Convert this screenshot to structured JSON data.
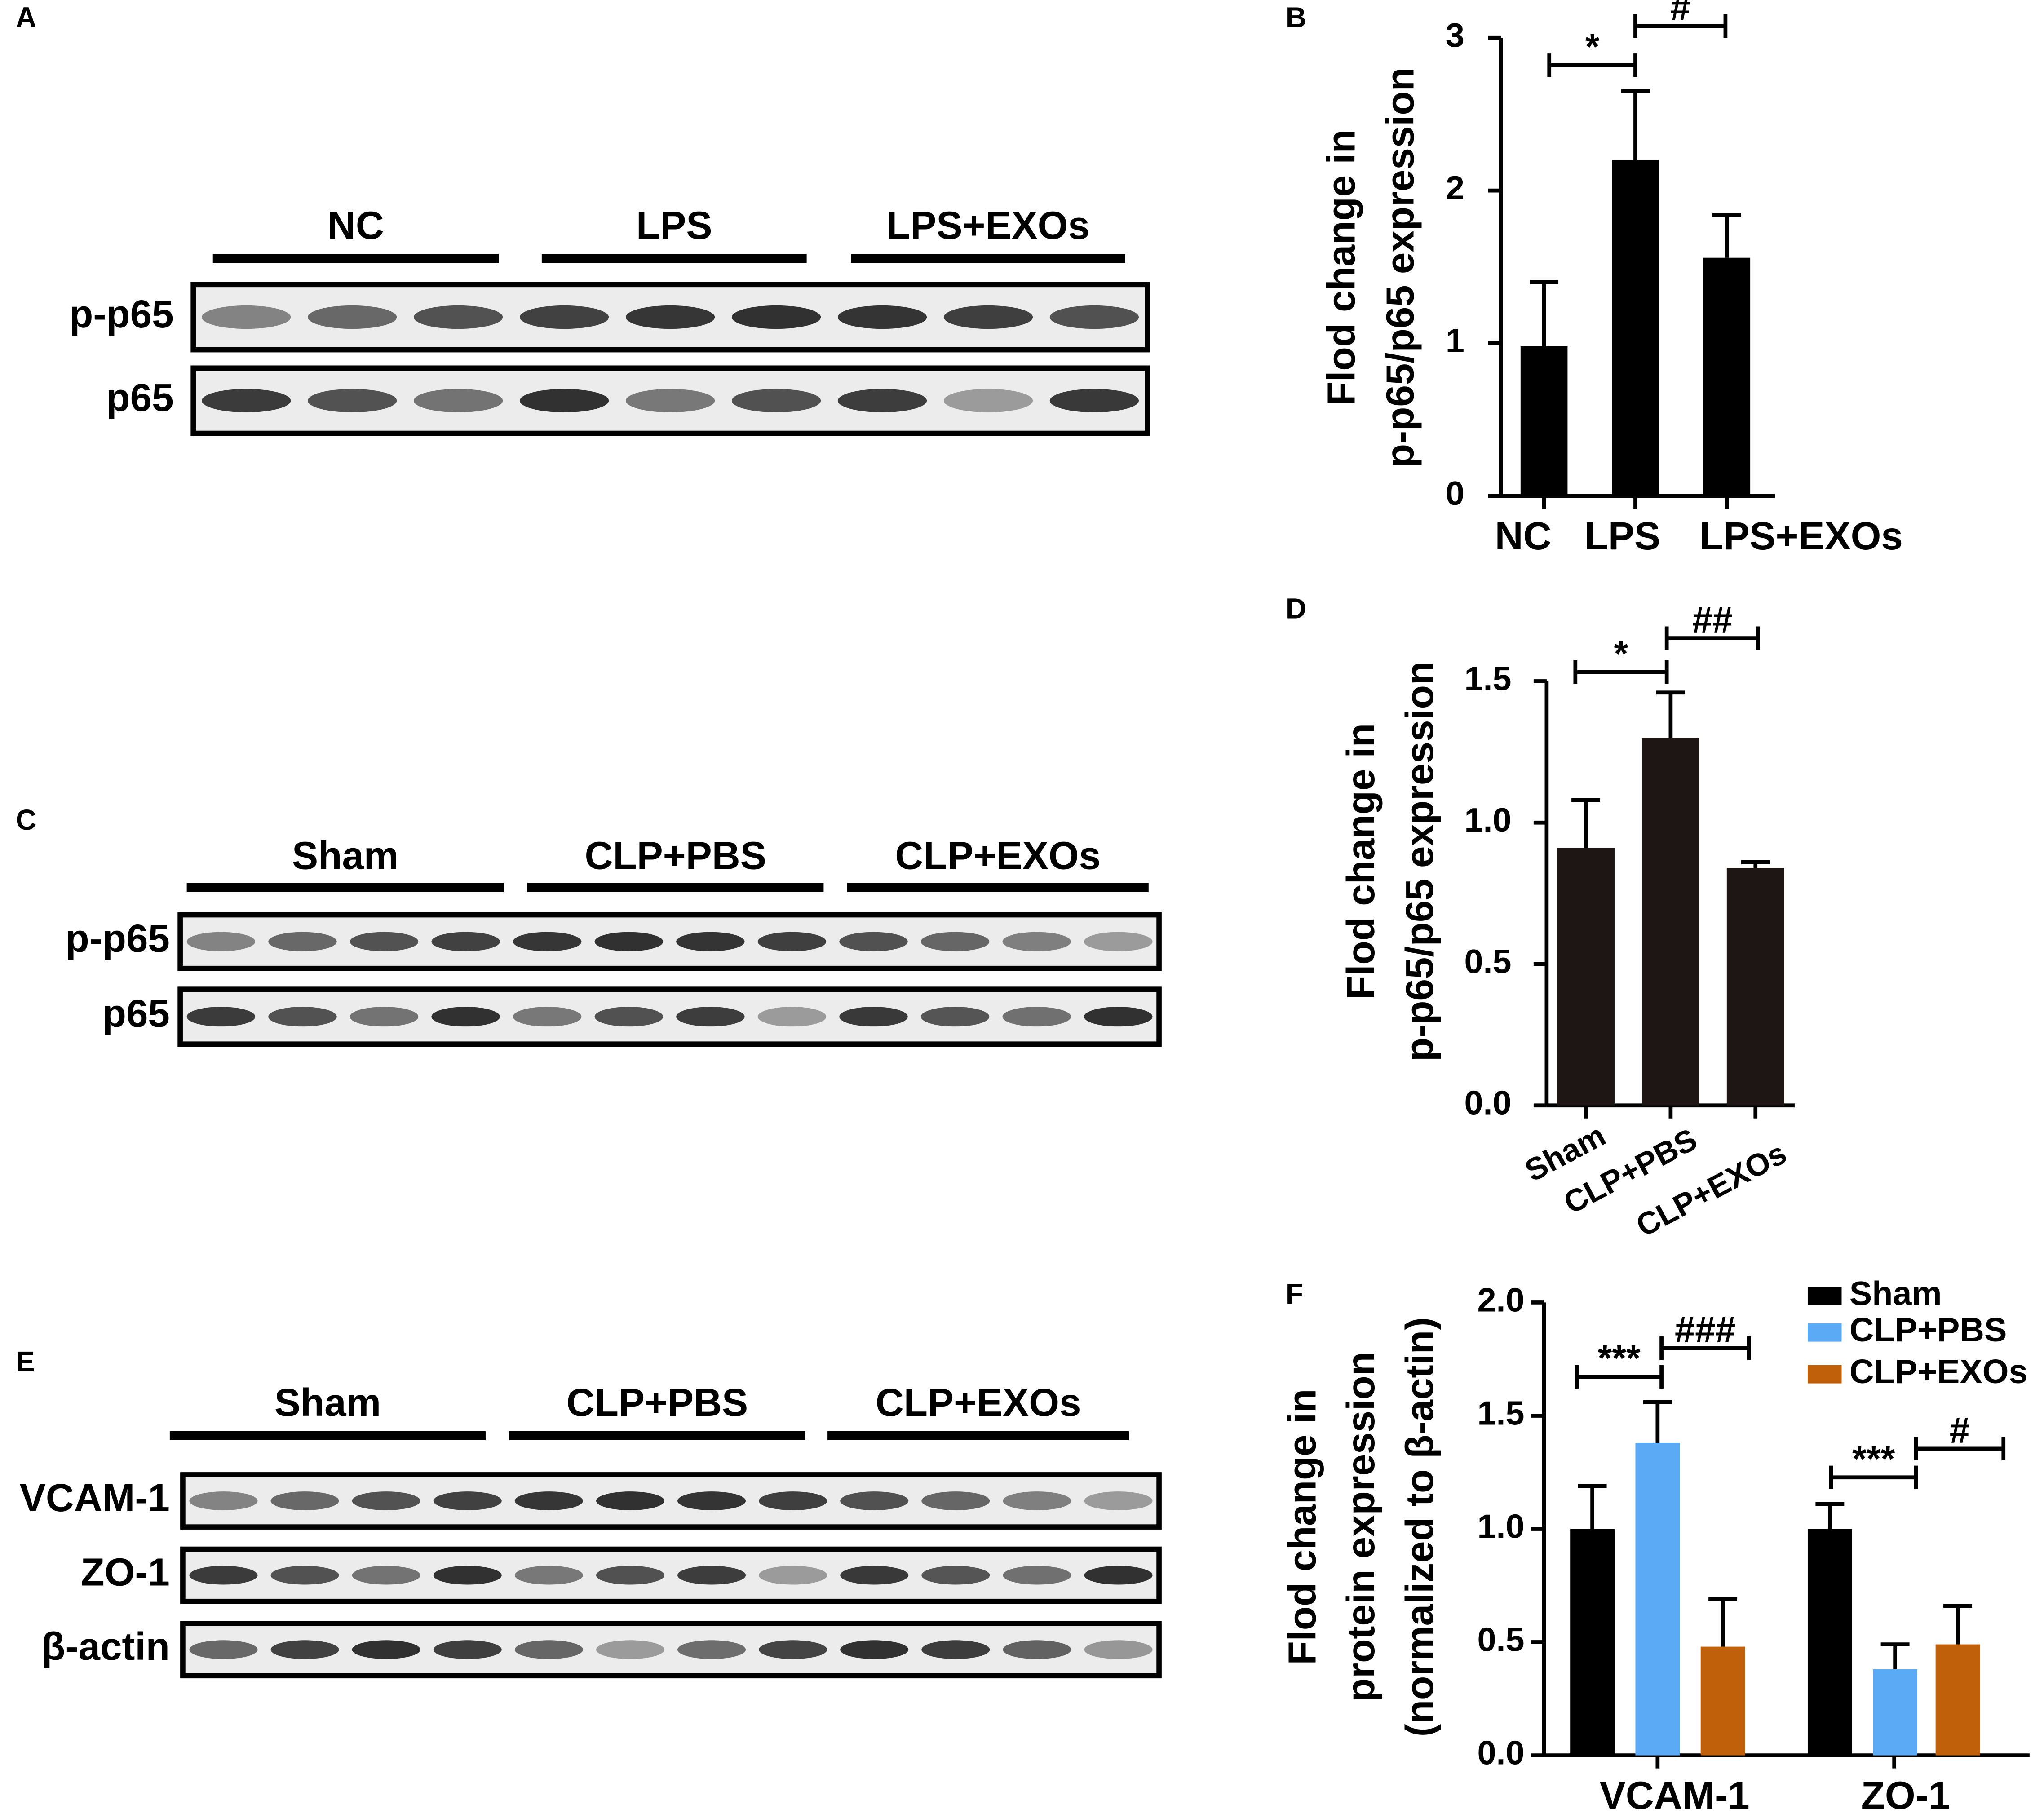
{
  "blots": [
    {
      "label": "A",
      "groups": [
        "NC",
        "LPS",
        "LPS+EXOs"
      ],
      "rows": [
        "p-p65",
        "p65"
      ]
    },
    {
      "label": "C",
      "groups": [
        "Sham",
        "CLP+PBS",
        "CLP+EXOs"
      ],
      "rows": [
        "p-p65",
        "p65"
      ]
    },
    {
      "label": "E",
      "groups": [
        "Sham",
        "CLP+PBS",
        "CLP+EXOs"
      ],
      "rows": [
        "VCAM-1",
        "ZO-1",
        "β-actin"
      ]
    }
  ],
  "chart_data": [
    {
      "type": "bar",
      "label": "B",
      "ylabel": [
        "Flod change in",
        "p-p65/p65 expression"
      ],
      "categories": [
        "NC",
        "LPS",
        "LPS+EXOs"
      ],
      "values": [
        0.98,
        2.2,
        1.56
      ],
      "errors": [
        0.42,
        0.45,
        0.28
      ],
      "color": "#000000",
      "ylim": [
        0,
        3
      ],
      "yticks": [
        0,
        1,
        2,
        3
      ],
      "annotations": [
        "*",
        "#"
      ]
    },
    {
      "type": "bar",
      "label": "D",
      "ylabel": [
        "Flod change in",
        "p-p65/p65 expression"
      ],
      "categories": [
        "Sham",
        "CLP+PBS",
        "CLP+EXOs"
      ],
      "values": [
        0.91,
        1.3,
        0.84
      ],
      "errors": [
        0.17,
        0.16,
        0.02
      ],
      "color": "#1e1614",
      "ylim": [
        0,
        1.5
      ],
      "yticks": [
        {
          "value": 0,
          "label": "0.0"
        },
        {
          "value": 0.5,
          "label": "0.5"
        },
        {
          "value": 1,
          "label": "1.0"
        },
        {
          "value": 1.5,
          "label": "1.5"
        }
      ],
      "annotations": [
        "*",
        "##"
      ]
    },
    {
      "type": "bar",
      "label": "F",
      "ylabel": [
        "Flod change in",
        "protein expression",
        "(normalized to β-actin)"
      ],
      "categories": [
        "VCAM-1",
        "ZO-1"
      ],
      "series": [
        {
          "name": "Sham",
          "color": "#000000",
          "values": [
            1.0,
            1.0
          ],
          "errors": [
            0.19,
            0.11
          ]
        },
        {
          "name": "CLP+PBS",
          "color": "#5aaaf5",
          "values": [
            1.38,
            0.38
          ],
          "errors": [
            0.18,
            0.11
          ]
        },
        {
          "name": "CLP+EXOs",
          "color": "#c0600a",
          "values": [
            0.48,
            0.49
          ],
          "errors": [
            0.21,
            0.17
          ]
        }
      ],
      "ylim": [
        0,
        2
      ],
      "yticks": [
        {
          "value": 0,
          "label": "0.0"
        },
        {
          "value": 0.5,
          "label": "0.5"
        },
        {
          "value": 1,
          "label": "1.0"
        },
        {
          "value": 1.5,
          "label": "1.5"
        },
        {
          "value": 2,
          "label": "2.0"
        }
      ],
      "annotations": [
        "***",
        "###",
        "***",
        "#"
      ]
    }
  ]
}
